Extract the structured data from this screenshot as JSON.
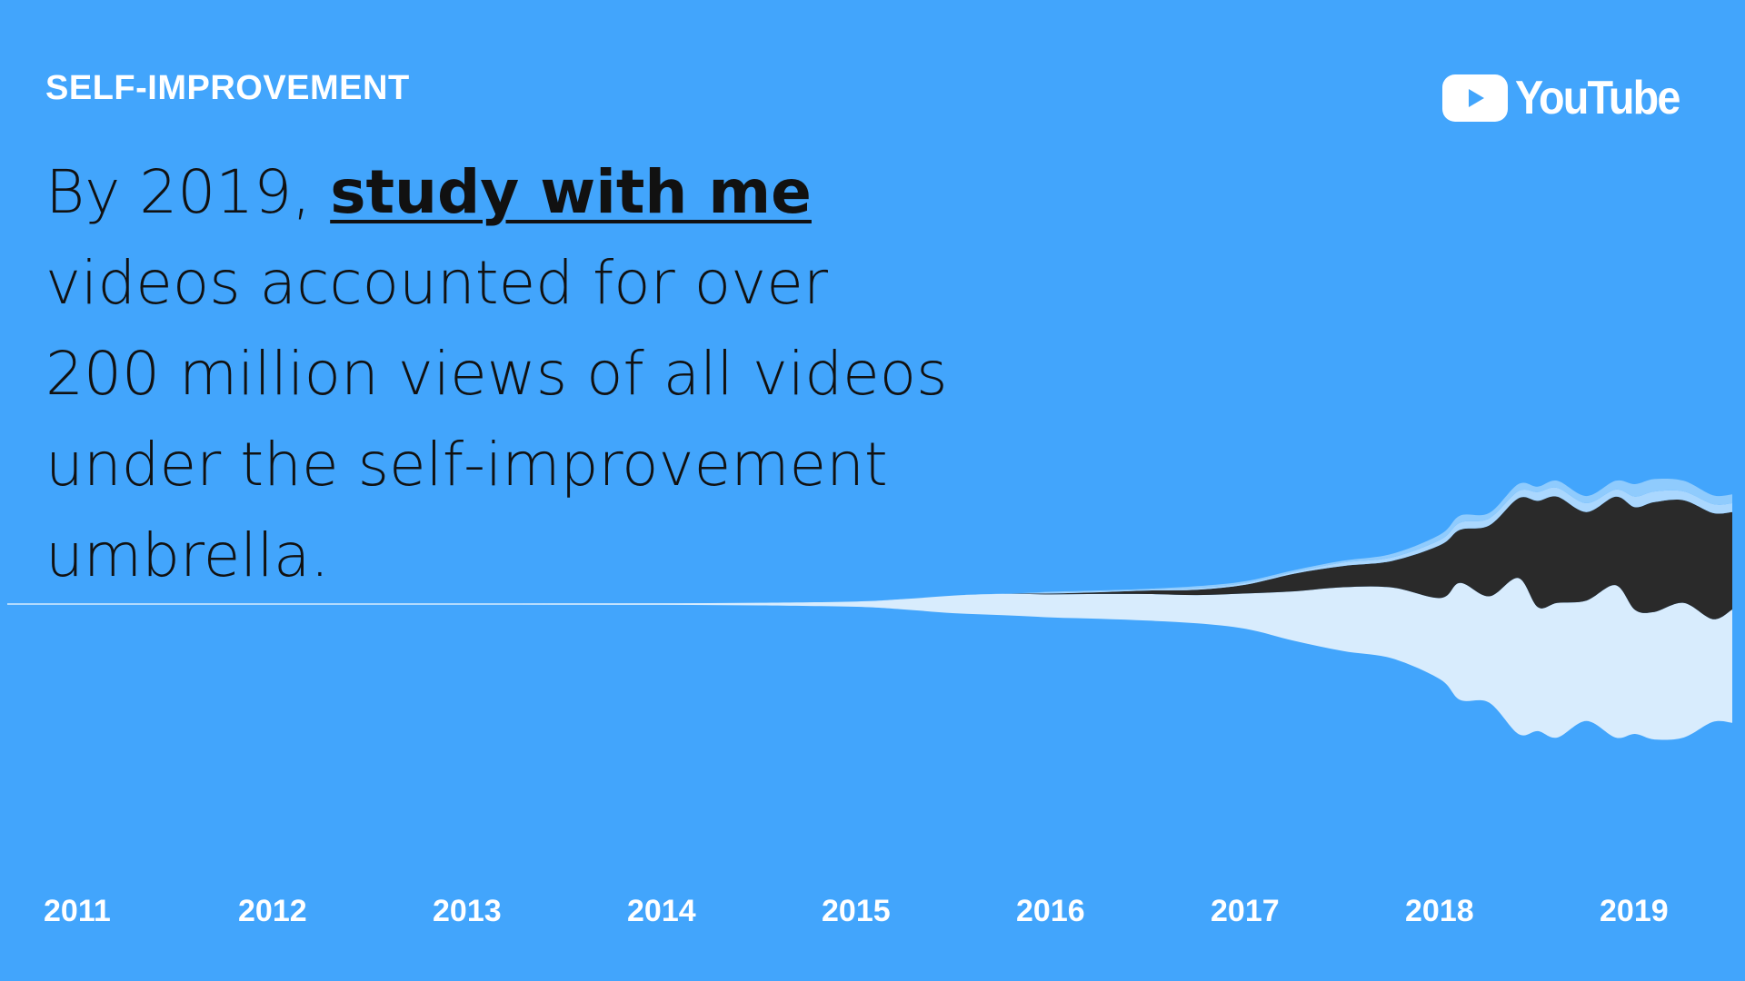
{
  "category": "SELF-IMPROVEMENT",
  "headline": {
    "before": "By 2019, ",
    "highlight": "study with me",
    "after": " videos accounted for over 200 million views of all videos under the self-improvement umbrella."
  },
  "logo": {
    "icon": "youtube-play-icon",
    "wordmark": "YouTube"
  },
  "colors": {
    "background": "#42a5fc",
    "series_light": "#d8ecfd",
    "series_dark": "#2a2a2a",
    "series_mid": "#aad7fe",
    "series_pale": "#8fcbfd"
  },
  "chart_data": {
    "type": "area",
    "subtype": "streamgraph",
    "x_tick_labels": [
      "2011",
      "2012",
      "2013",
      "2014",
      "2015",
      "2016",
      "2017",
      "2018",
      "2019"
    ],
    "x": [
      2011.0,
      2011.5,
      2012.0,
      2012.5,
      2013.0,
      2013.5,
      2014.0,
      2014.5,
      2015.0,
      2015.25,
      2015.5,
      2015.75,
      2016.0,
      2016.25,
      2016.5,
      2016.75,
      2017.0,
      2017.25,
      2017.5,
      2017.75,
      2018.0,
      2018.1,
      2018.25,
      2018.4,
      2018.5,
      2018.6,
      2018.75,
      2018.9,
      2019.0,
      2019.1,
      2019.25,
      2019.4,
      2019.5
    ],
    "series": [
      {
        "values": [
          0.2,
          0.2,
          0.3,
          0.3,
          0.4,
          0.6,
          0.8,
          1.5,
          3,
          6,
          10,
          12,
          13,
          14,
          15,
          16,
          20,
          28,
          36,
          40,
          46,
          66,
          60,
          88,
          70,
          76,
          68,
          86,
          70,
          72,
          76,
          58,
          64
        ]
      },
      {
        "values": [
          0,
          0,
          0,
          0,
          0,
          0,
          0,
          0,
          0,
          0,
          0,
          0,
          0.5,
          1,
          2,
          3,
          5,
          10,
          12,
          15,
          30,
          30,
          40,
          45,
          60,
          60,
          50,
          50,
          58,
          62,
          58,
          60,
          55
        ]
      },
      {
        "values": [
          0,
          0,
          0,
          0,
          0,
          0,
          0,
          0,
          0,
          0,
          0,
          0,
          0.5,
          0.5,
          0.5,
          1,
          1,
          1,
          2,
          2,
          3,
          4,
          4,
          4,
          5,
          5,
          5,
          4,
          6,
          6,
          5,
          5,
          5
        ]
      },
      {
        "values": [
          0,
          0,
          0,
          0,
          0,
          0,
          0,
          0,
          0,
          0,
          0,
          0,
          0.5,
          0.5,
          0.5,
          1,
          1,
          1,
          1,
          2,
          3,
          4,
          3,
          4,
          3,
          4,
          4,
          5,
          7,
          7,
          6,
          5,
          5
        ]
      }
    ],
    "xlim": [
      2010.9,
      2019.55
    ]
  }
}
